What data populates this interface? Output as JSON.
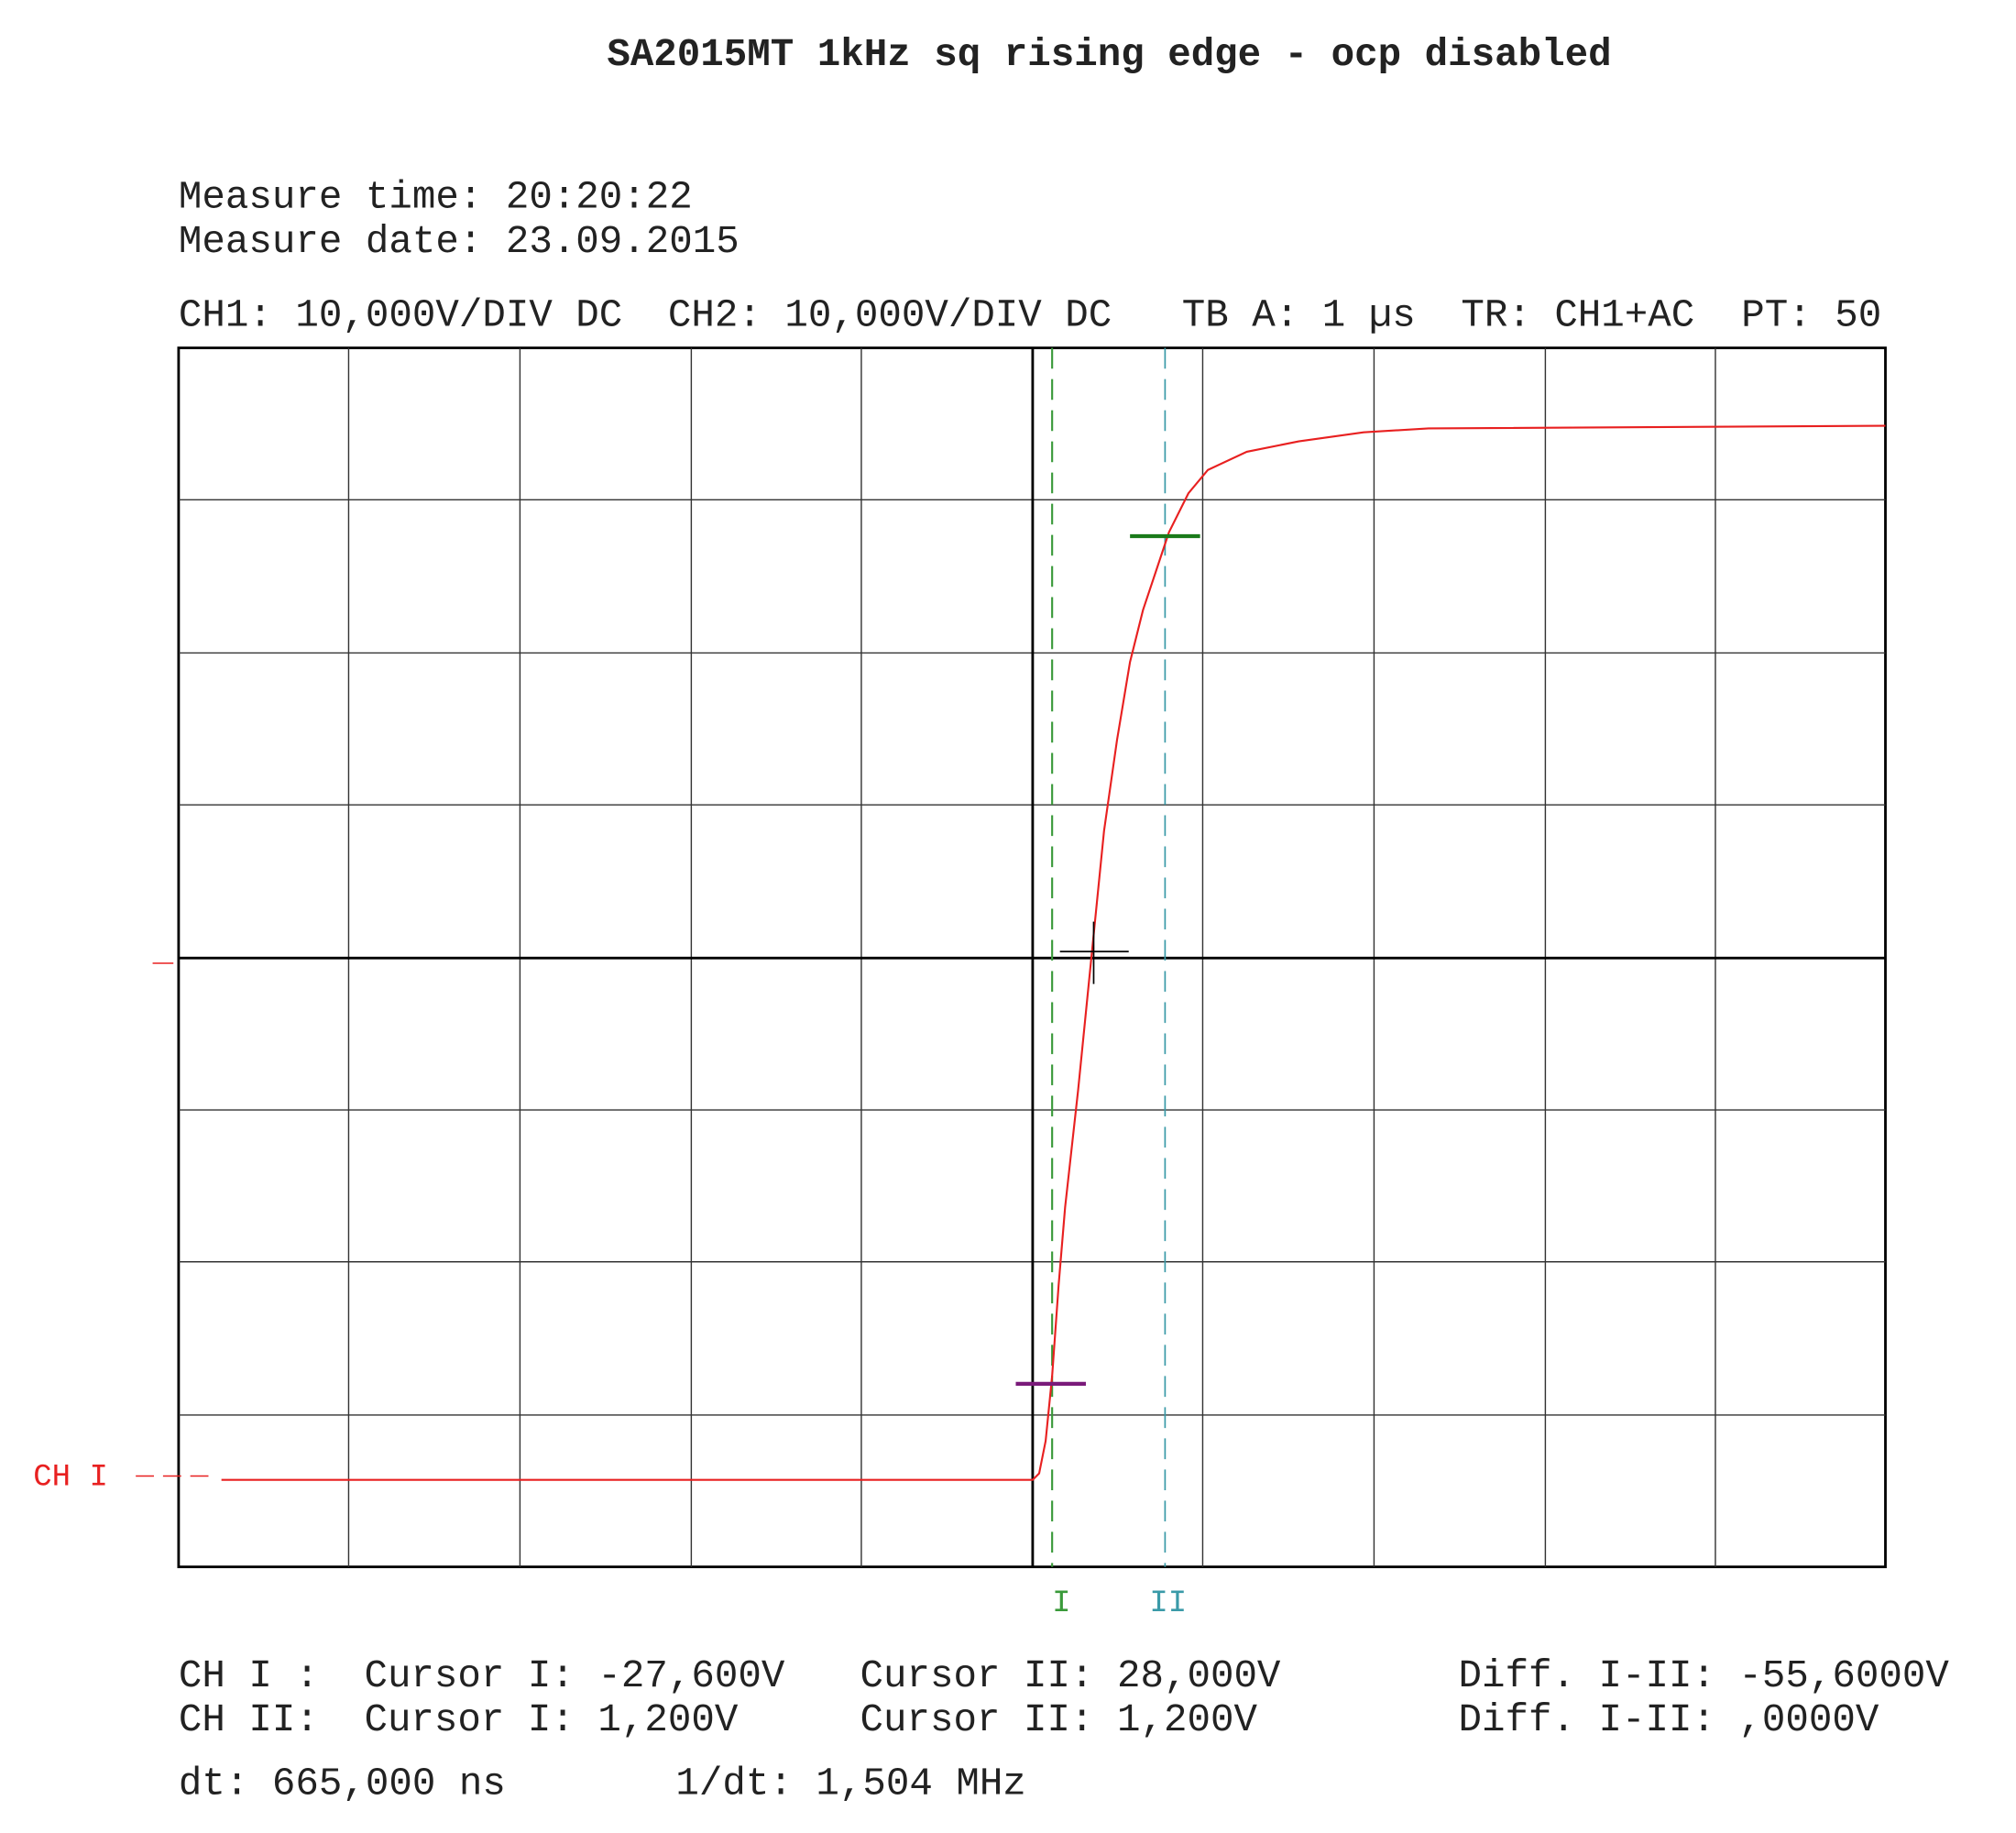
{
  "title": "SA2015MT 1kHz sq rising edge - ocp disabled",
  "measure": {
    "time": "Measure time: 20:20:22",
    "date": "Measure date: 23.09.2015"
  },
  "settings": [
    "CH1: 10,000V/DIV DC",
    "CH2: 10,000V/DIV DC",
    "TB A: 1 µs",
    "TR: CH1+AC",
    "PT: 50"
  ],
  "channel_label": "CH I",
  "cursor_labels": [
    "I",
    "II"
  ],
  "readout": {
    "rows": [
      [
        "CH I :",
        "Cursor I: -27,600V",
        "Cursor II: 28,000V",
        "Diff. I-II: -55,6000V"
      ],
      [
        "CH II:",
        "Cursor I: 1,200V",
        "Cursor II: 1,200V",
        "Diff. I-II: ,0000V"
      ]
    ],
    "dt": "dt: 665,000 ns",
    "inv_dt": "1/dt: 1,504 MHz"
  }
}
